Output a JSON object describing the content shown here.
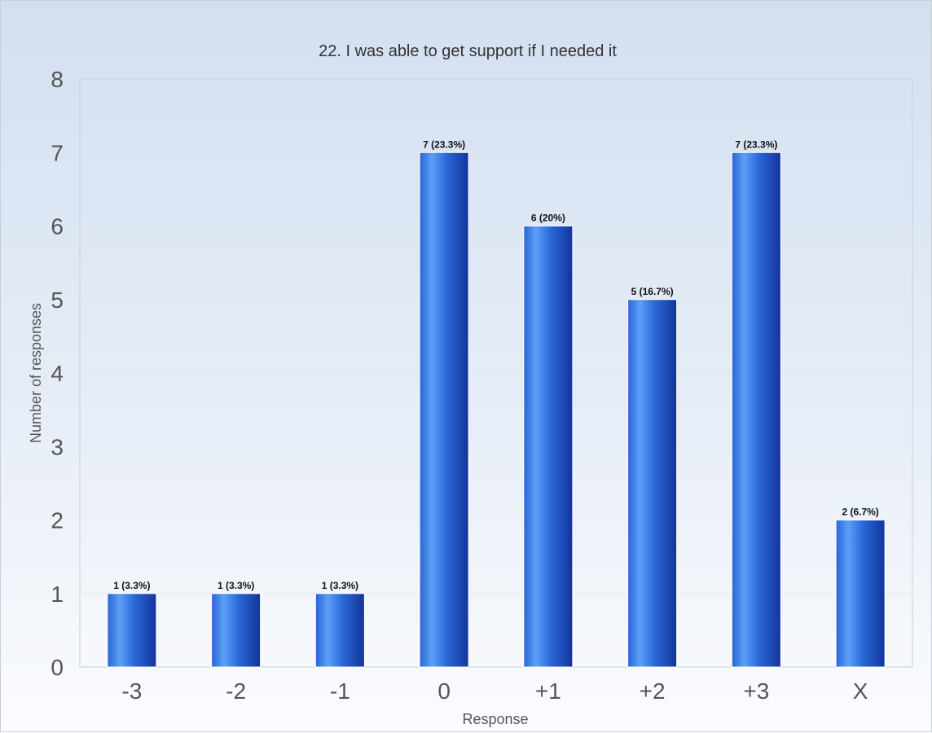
{
  "chart_data": {
    "type": "bar",
    "title": "22. I was able to get support if I needed it",
    "xlabel": "Response",
    "ylabel": "Number of responses",
    "categories": [
      "-3",
      "-2",
      "-1",
      "0",
      "+1",
      "+2",
      "+3",
      "X"
    ],
    "values": [
      1,
      1,
      1,
      7,
      6,
      5,
      7,
      2
    ],
    "data_labels": [
      "1 (3.3%)",
      "1 (3.3%)",
      "1 (3.3%)",
      "7 (23.3%)",
      "6 (20%)",
      "5 (16.7%)",
      "7 (23.3%)",
      "2 (6.7%)"
    ],
    "ylim": [
      0,
      8
    ],
    "yticks": [
      "0",
      "1",
      "2",
      "3",
      "4",
      "5",
      "6",
      "7",
      "8"
    ],
    "grid": true,
    "colors": {
      "bar_dark": "#1a3fa0",
      "bar_light": "#5aa0f5",
      "grid": "#e2e7ef",
      "plot_border": "#c9cfd8"
    }
  }
}
